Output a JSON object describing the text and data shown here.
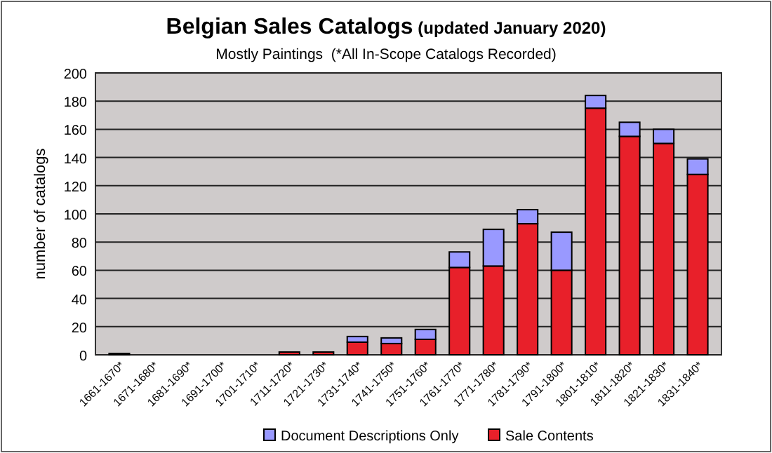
{
  "chart_data": {
    "type": "bar",
    "title": "Belgian Sales Catalogs",
    "subtitle": "(updated January 2020)",
    "annotations": [
      "Mostly Paintings  (*All In-Scope Catalogs Recorded)"
    ],
    "ylabel": "number of catalogs",
    "categories": [
      "1661-1670*",
      "1671-1680*",
      "1681-1690*",
      "1691-1700*",
      "1701-1710*",
      "1711-1720*",
      "1721-1730*",
      "1731-1740*",
      "1741-1750*",
      "1751-1760*",
      "1761-1770*",
      "1771-1780*",
      "1781-1790*",
      "1791-1800*",
      "1801-1810*",
      "1811-1820*",
      "1821-1830*",
      "1831-1840*"
    ],
    "series": [
      {
        "name": "Sale Contents",
        "color": "#e8202a",
        "values": [
          1,
          0,
          0,
          0,
          0,
          2,
          2,
          9,
          8,
          11,
          62,
          63,
          93,
          60,
          175,
          155,
          150,
          128
        ]
      },
      {
        "name": "Document Descriptions Only",
        "color": "#9999ff",
        "values": [
          0,
          0,
          0,
          0,
          0,
          0,
          0,
          4,
          4,
          7,
          11,
          26,
          10,
          27,
          9,
          10,
          10,
          11
        ]
      }
    ],
    "stacked": true,
    "ylim": [
      0,
      200
    ],
    "yticks": [
      0,
      20,
      40,
      60,
      80,
      100,
      120,
      140,
      160,
      180,
      200
    ],
    "grid": "y",
    "legend": "bottom"
  }
}
